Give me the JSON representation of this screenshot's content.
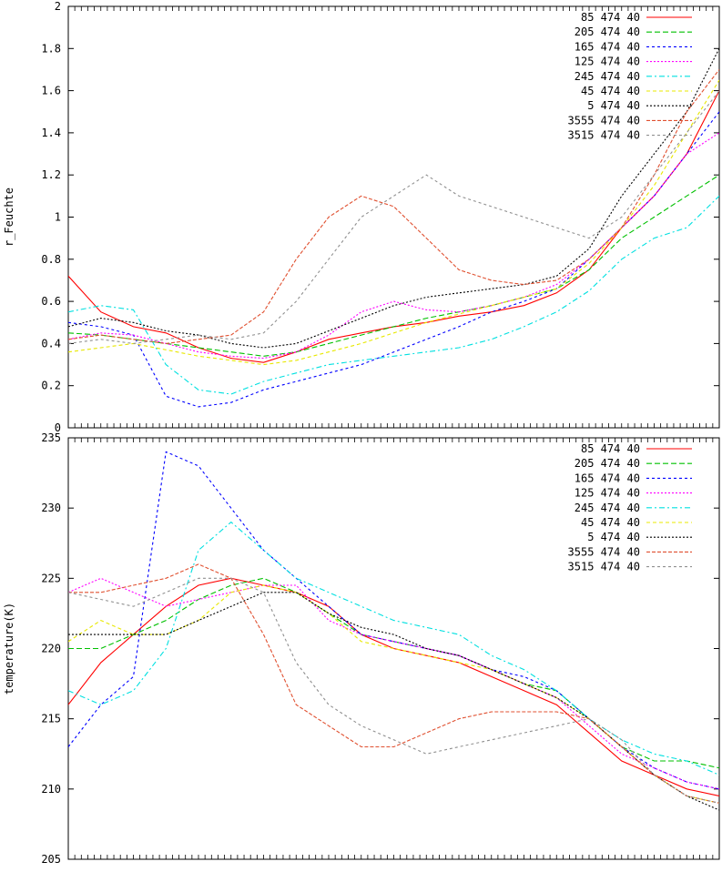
{
  "chart_data": [
    {
      "type": "line",
      "title": "",
      "xlabel": "",
      "ylabel": "r_Feuchte",
      "ylim": [
        0,
        2
      ],
      "yticks": [
        "0",
        "0.2",
        "0.4",
        "0.6",
        "0.8",
        "1",
        "1.2",
        "1.4",
        "1.6",
        "1.8",
        "2"
      ],
      "xlim": [
        0,
        100
      ],
      "x_tick_labels": "none",
      "grid": false,
      "legend_position": "top-right",
      "series": [
        {
          "name": "85 474 40",
          "color": "#ff0000",
          "dash": "solid",
          "x": [
            0,
            5,
            10,
            15,
            20,
            25,
            30,
            35,
            40,
            45,
            50,
            55,
            60,
            65,
            70,
            75,
            80,
            85,
            90,
            95,
            100
          ],
          "y": [
            0.72,
            0.55,
            0.48,
            0.45,
            0.38,
            0.33,
            0.31,
            0.36,
            0.42,
            0.45,
            0.48,
            0.5,
            0.53,
            0.55,
            0.58,
            0.64,
            0.75,
            0.95,
            1.1,
            1.3,
            1.6
          ]
        },
        {
          "name": "205 474 40",
          "color": "#00c000",
          "dash": "6,3",
          "x": [
            0,
            5,
            10,
            15,
            20,
            25,
            30,
            35,
            40,
            45,
            50,
            55,
            60,
            65,
            70,
            75,
            80,
            85,
            90,
            95,
            100
          ],
          "y": [
            0.45,
            0.44,
            0.42,
            0.4,
            0.38,
            0.36,
            0.34,
            0.36,
            0.4,
            0.44,
            0.48,
            0.52,
            0.55,
            0.58,
            0.62,
            0.66,
            0.75,
            0.9,
            1.0,
            1.1,
            1.2
          ]
        },
        {
          "name": "165 474 40",
          "color": "#0000ff",
          "dash": "3,3",
          "x": [
            0,
            5,
            10,
            15,
            20,
            25,
            30,
            35,
            40,
            45,
            50,
            55,
            60,
            65,
            70,
            75,
            80,
            85,
            90,
            95,
            100
          ],
          "y": [
            0.5,
            0.48,
            0.44,
            0.15,
            0.1,
            0.12,
            0.18,
            0.22,
            0.26,
            0.3,
            0.36,
            0.42,
            0.48,
            0.55,
            0.6,
            0.66,
            0.8,
            0.95,
            1.1,
            1.3,
            1.5
          ]
        },
        {
          "name": "125 474 40",
          "color": "#ff00ff",
          "dash": "2,2",
          "x": [
            0,
            5,
            10,
            15,
            20,
            25,
            30,
            35,
            40,
            45,
            50,
            55,
            60,
            65,
            70,
            75,
            80,
            85,
            90,
            95,
            100
          ],
          "y": [
            0.42,
            0.45,
            0.44,
            0.4,
            0.36,
            0.34,
            0.33,
            0.36,
            0.44,
            0.55,
            0.6,
            0.56,
            0.55,
            0.58,
            0.62,
            0.68,
            0.8,
            0.95,
            1.1,
            1.3,
            1.4
          ]
        },
        {
          "name": "245 474 40",
          "color": "#00e0e0",
          "dash": "6,3,2,3",
          "x": [
            0,
            5,
            10,
            15,
            20,
            25,
            30,
            35,
            40,
            45,
            50,
            55,
            60,
            65,
            70,
            75,
            80,
            85,
            90,
            95,
            100
          ],
          "y": [
            0.55,
            0.58,
            0.56,
            0.3,
            0.18,
            0.16,
            0.22,
            0.26,
            0.3,
            0.32,
            0.34,
            0.36,
            0.38,
            0.42,
            0.48,
            0.55,
            0.65,
            0.8,
            0.9,
            0.95,
            1.1
          ]
        },
        {
          "name": "45 474 40",
          "color": "#e8e800",
          "dash": "4,3",
          "x": [
            0,
            5,
            10,
            15,
            20,
            25,
            30,
            35,
            40,
            45,
            50,
            55,
            60,
            65,
            70,
            75,
            80,
            85,
            90,
            95,
            100
          ],
          "y": [
            0.36,
            0.38,
            0.4,
            0.37,
            0.34,
            0.32,
            0.3,
            0.32,
            0.36,
            0.4,
            0.45,
            0.5,
            0.54,
            0.58,
            0.62,
            0.66,
            0.78,
            0.95,
            1.15,
            1.4,
            1.65
          ]
        },
        {
          "name": "5 474 40",
          "color": "#000000",
          "dash": "2,2",
          "x": [
            0,
            5,
            10,
            15,
            20,
            25,
            30,
            35,
            40,
            45,
            50,
            55,
            60,
            65,
            70,
            75,
            80,
            85,
            90,
            95,
            100
          ],
          "y": [
            0.48,
            0.52,
            0.5,
            0.46,
            0.44,
            0.4,
            0.38,
            0.4,
            0.46,
            0.52,
            0.58,
            0.62,
            0.64,
            0.66,
            0.68,
            0.72,
            0.85,
            1.1,
            1.3,
            1.5,
            1.8
          ]
        },
        {
          "name": "3555 474 40",
          "color": "#e05030",
          "dash": "4,2",
          "x": [
            0,
            5,
            10,
            15,
            20,
            25,
            30,
            35,
            40,
            45,
            50,
            55,
            60,
            65,
            70,
            75,
            80,
            85,
            90,
            95,
            100
          ],
          "y": [
            0.42,
            0.44,
            0.42,
            0.4,
            0.42,
            0.44,
            0.55,
            0.8,
            1.0,
            1.1,
            1.05,
            0.9,
            0.75,
            0.7,
            0.68,
            0.7,
            0.8,
            0.95,
            1.2,
            1.5,
            1.7
          ]
        },
        {
          "name": "3515 474 40",
          "color": "#909090",
          "dash": "3,3",
          "x": [
            0,
            5,
            10,
            15,
            20,
            25,
            30,
            35,
            40,
            45,
            50,
            55,
            60,
            65,
            70,
            75,
            80,
            85,
            90,
            95,
            100
          ],
          "y": [
            0.4,
            0.42,
            0.4,
            0.42,
            0.44,
            0.42,
            0.45,
            0.6,
            0.8,
            1.0,
            1.1,
            1.2,
            1.1,
            1.05,
            1.0,
            0.95,
            0.9,
            1.0,
            1.2,
            1.4,
            1.6
          ]
        }
      ]
    },
    {
      "type": "line",
      "title": "",
      "xlabel": "",
      "ylabel": "temperature(K)",
      "ylim": [
        205,
        235
      ],
      "yticks": [
        "205",
        "210",
        "215",
        "220",
        "225",
        "230",
        "235"
      ],
      "xlim": [
        0,
        100
      ],
      "x_tick_labels": "none",
      "grid": false,
      "legend_position": "top-right",
      "series": [
        {
          "name": "85 474 40",
          "color": "#ff0000",
          "dash": "solid",
          "x": [
            0,
            5,
            10,
            15,
            20,
            25,
            30,
            35,
            40,
            45,
            50,
            55,
            60,
            65,
            70,
            75,
            80,
            85,
            90,
            95,
            100
          ],
          "y": [
            216,
            219,
            221,
            223,
            224.5,
            225,
            224.5,
            224,
            223,
            221,
            220,
            219.5,
            219,
            218,
            217,
            216,
            214,
            212,
            211,
            210,
            209.5
          ]
        },
        {
          "name": "205 474 40",
          "color": "#00c000",
          "dash": "6,3",
          "x": [
            0,
            5,
            10,
            15,
            20,
            25,
            30,
            35,
            40,
            45,
            50,
            55,
            60,
            65,
            70,
            75,
            80,
            85,
            90,
            95,
            100
          ],
          "y": [
            220,
            220,
            221,
            222,
            223.5,
            224.5,
            225,
            224,
            222.5,
            221,
            220.5,
            220,
            219.5,
            218.5,
            217.5,
            217,
            215,
            213,
            212,
            212,
            211.5
          ]
        },
        {
          "name": "165 474 40",
          "color": "#0000ff",
          "dash": "3,3",
          "x": [
            0,
            5,
            10,
            15,
            20,
            25,
            30,
            35,
            40,
            45,
            50,
            55,
            60,
            65,
            70,
            75,
            80,
            85,
            90,
            95,
            100
          ],
          "y": [
            213,
            216,
            218,
            234,
            233,
            230,
            227,
            225,
            223,
            221,
            220.5,
            220,
            219.5,
            218.5,
            218,
            217,
            215,
            213,
            211.5,
            210.5,
            210
          ]
        },
        {
          "name": "125 474 40",
          "color": "#ff00ff",
          "dash": "2,2",
          "x": [
            0,
            5,
            10,
            15,
            20,
            25,
            30,
            35,
            40,
            45,
            50,
            55,
            60,
            65,
            70,
            75,
            80,
            85,
            90,
            95,
            100
          ],
          "y": [
            224,
            225,
            224,
            223,
            223.5,
            224,
            224.5,
            224.5,
            222,
            221,
            220.5,
            220,
            219.5,
            218.5,
            217.5,
            216.5,
            214.5,
            212.5,
            211.5,
            210.5,
            210
          ]
        },
        {
          "name": "245 474 40",
          "color": "#00e0e0",
          "dash": "6,3,2,3",
          "x": [
            0,
            5,
            10,
            15,
            20,
            25,
            30,
            35,
            40,
            45,
            50,
            55,
            60,
            65,
            70,
            75,
            80,
            85,
            90,
            95,
            100
          ],
          "y": [
            217,
            216,
            217,
            220,
            227,
            229,
            227,
            225,
            224,
            223,
            222,
            221.5,
            221,
            219.5,
            218.5,
            217,
            215,
            213.5,
            212.5,
            212,
            211
          ]
        },
        {
          "name": "45 474 40",
          "color": "#e8e800",
          "dash": "4,3",
          "x": [
            0,
            5,
            10,
            15,
            20,
            25,
            30,
            35,
            40,
            45,
            50,
            55,
            60,
            65,
            70,
            75,
            80,
            85,
            90,
            95,
            100
          ],
          "y": [
            220.5,
            222,
            221,
            221,
            222,
            224,
            224.5,
            224,
            222.5,
            220.5,
            220,
            219.5,
            219,
            218.5,
            217.5,
            216.5,
            215,
            213,
            211,
            209.5,
            209
          ]
        },
        {
          "name": "5 474 40",
          "color": "#000000",
          "dash": "2,2",
          "x": [
            0,
            5,
            10,
            15,
            20,
            25,
            30,
            35,
            40,
            45,
            50,
            55,
            60,
            65,
            70,
            75,
            80,
            85,
            90,
            95,
            100
          ],
          "y": [
            221,
            221,
            221,
            221,
            222,
            223,
            224,
            224,
            222.5,
            221.5,
            221,
            220,
            219.5,
            218.5,
            217.5,
            216.5,
            215,
            213,
            211,
            209.5,
            208.5
          ]
        },
        {
          "name": "3555 474 40",
          "color": "#e05030",
          "dash": "4,2",
          "x": [
            0,
            5,
            10,
            15,
            20,
            25,
            30,
            35,
            40,
            45,
            50,
            55,
            60,
            65,
            70,
            75,
            80,
            85,
            90,
            95,
            100
          ],
          "y": [
            224,
            224,
            224.5,
            225,
            226,
            225,
            221,
            216,
            214.5,
            213,
            213,
            214,
            215,
            215.5,
            215.5,
            215.5,
            215,
            213,
            211,
            209.5,
            209
          ]
        },
        {
          "name": "3515 474 40",
          "color": "#909090",
          "dash": "3,3",
          "x": [
            0,
            5,
            10,
            15,
            20,
            25,
            30,
            35,
            40,
            45,
            50,
            55,
            60,
            65,
            70,
            75,
            80,
            85,
            90,
            95,
            100
          ],
          "y": [
            224,
            223.5,
            223,
            224,
            225,
            225,
            224,
            219,
            216,
            214.5,
            213.5,
            212.5,
            213,
            213.5,
            214,
            214.5,
            215,
            213.5,
            211,
            209.5,
            209
          ]
        }
      ]
    }
  ]
}
